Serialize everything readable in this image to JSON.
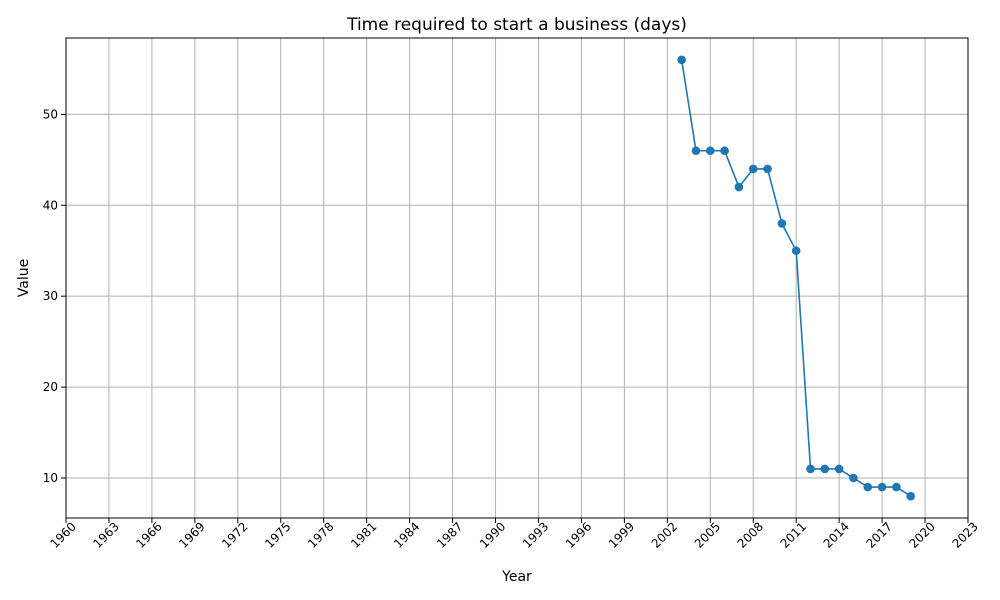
{
  "chart_data": {
    "type": "line",
    "title": "Time required to start a business (days)",
    "xlabel": "Year",
    "ylabel": "Value",
    "xlim": [
      1960,
      2023
    ],
    "ylim": [
      5.6,
      58.4
    ],
    "x_ticks": [
      1960,
      1963,
      1966,
      1969,
      1972,
      1975,
      1978,
      1981,
      1984,
      1987,
      1990,
      1993,
      1996,
      1999,
      2002,
      2005,
      2008,
      2011,
      2014,
      2017,
      2020,
      2023
    ],
    "y_ticks": [
      10,
      20,
      30,
      40,
      50
    ],
    "grid": true,
    "series": [
      {
        "color": "#1f77b4",
        "marker": "circle",
        "x": [
          2003,
          2004,
          2005,
          2006,
          2007,
          2008,
          2009,
          2010,
          2011,
          2012,
          2013,
          2014,
          2015,
          2016,
          2017,
          2018,
          2019
        ],
        "values": [
          56,
          46,
          46,
          46,
          42,
          44,
          44,
          38,
          35,
          11,
          11,
          11,
          10,
          9,
          9,
          9,
          8
        ]
      }
    ]
  }
}
